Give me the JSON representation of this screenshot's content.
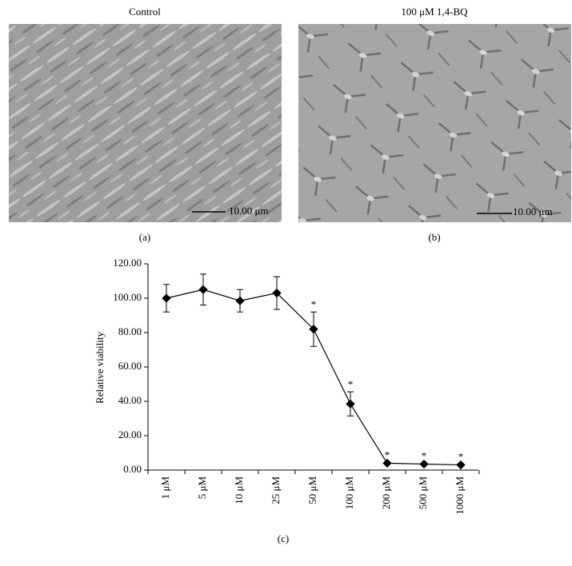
{
  "panels": [
    {
      "title": "Control",
      "scale_label": "10.00 μm",
      "label": "(a)"
    },
    {
      "title": "100 μM 1,4-BQ",
      "scale_label": "10.00 μm",
      "label": "(b)"
    }
  ],
  "chart_data": {
    "type": "line",
    "panel_label": "(c)",
    "y_label": "Relative viability",
    "categories": [
      "1 μM",
      "5 μM",
      "10 μM",
      "25 μM",
      "50 μM",
      "100 μM",
      "200 μM",
      "500 μM",
      "1000 μM"
    ],
    "values": [
      100,
      105,
      98.5,
      103,
      82,
      38.5,
      4,
      3.5,
      3
    ],
    "errors": [
      8,
      9,
      6.5,
      9.5,
      10,
      7,
      0.5,
      0.5,
      0.5
    ],
    "color": "#000000",
    "ylim": [
      0,
      120
    ],
    "yticks": [
      {
        "value": 0,
        "label": "0.00"
      },
      {
        "value": 20,
        "label": "20.00"
      },
      {
        "value": 40,
        "label": "40.00"
      },
      {
        "value": 60,
        "label": "60.00"
      },
      {
        "value": 80,
        "label": "80.00"
      },
      {
        "value": 100,
        "label": "100.00"
      },
      {
        "value": 120,
        "label": "120.00"
      }
    ],
    "annotations": [
      {
        "category": "50 μM",
        "text": "*"
      },
      {
        "category": "100 μM",
        "text": "*"
      },
      {
        "category": "200 μM",
        "text": "*"
      },
      {
        "category": "500 μM",
        "text": "*"
      },
      {
        "category": "1000 μM",
        "text": "*"
      }
    ]
  }
}
